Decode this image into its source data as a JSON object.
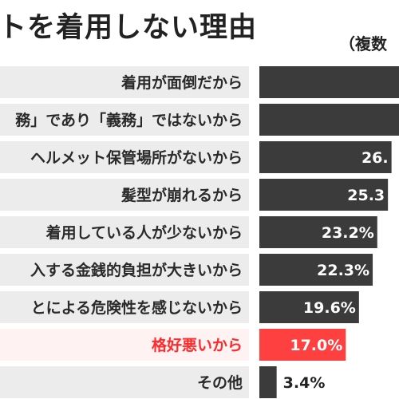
{
  "title": "トを着用しない理由",
  "subtitle": "（複数",
  "colors": {
    "background": "#ffffff",
    "row_label_bg": "#ececec",
    "bar": "#3b3b3b",
    "highlight_bar": "#ff4040",
    "highlight_text": "#ff2a2a",
    "highlight_row_bg": "#fff2f2",
    "value_text": "#222222"
  },
  "chart_data": {
    "type": "bar",
    "orientation": "horizontal",
    "categories": [
      "着用が面倒だから",
      "務」であり「義務」ではないから",
      "ヘルメット保管場所がないから",
      "髪型が崩れるから",
      "着用している人が少ないから",
      "入する金銭的負担が大きいから",
      "とによる危険性を感じないから",
      "格好悪いから",
      "その他"
    ],
    "values": [
      null,
      null,
      26.0,
      25.3,
      23.2,
      22.3,
      19.6,
      17.0,
      3.4
    ],
    "value_labels": [
      "",
      "",
      "26.",
      "25.3",
      "23.2%",
      "22.3%",
      "19.6%",
      "17.0%",
      "3.4%"
    ],
    "highlight_index": 7,
    "xlim": [
      0,
      27.5
    ]
  }
}
